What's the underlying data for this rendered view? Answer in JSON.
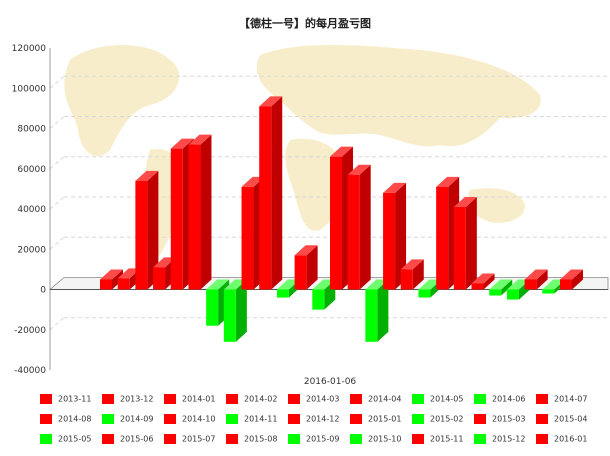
{
  "chart_data": {
    "type": "bar",
    "title": "【德柱一号】的每月盈亏图",
    "xlabel": "2016-01-06",
    "ylabel": "",
    "ylim": [
      -40000,
      120000
    ],
    "yticks": [
      "120000",
      "100000",
      "80000",
      "60000",
      "40000",
      "20000",
      "0",
      "-20000",
      "-40000"
    ],
    "grid": true,
    "legend_position": "bottom",
    "colors": {
      "positive": "#ff0000",
      "negative": "#00ff00"
    },
    "categories": [
      "2013-11",
      "2013-12",
      "2014-01",
      "2014-02",
      "2014-03",
      "2014-04",
      "2014-05",
      "2014-06",
      "2014-07",
      "2014-08",
      "2014-09",
      "2014-10",
      "2014-11",
      "2014-12",
      "2015-01",
      "2015-02",
      "2015-03",
      "2015-04",
      "2015-05",
      "2015-06",
      "2015-07",
      "2015-08",
      "2015-09",
      "2015-10",
      "2015-11",
      "2015-12",
      "2016-01"
    ],
    "values": [
      5000,
      5500,
      54000,
      11000,
      70000,
      72000,
      -18000,
      -26000,
      51000,
      91000,
      -4000,
      17000,
      -10000,
      66000,
      57000,
      -26000,
      48000,
      10000,
      -4000,
      51000,
      41000,
      3000,
      -3000,
      -5000,
      5000,
      -2000,
      5000
    ]
  }
}
